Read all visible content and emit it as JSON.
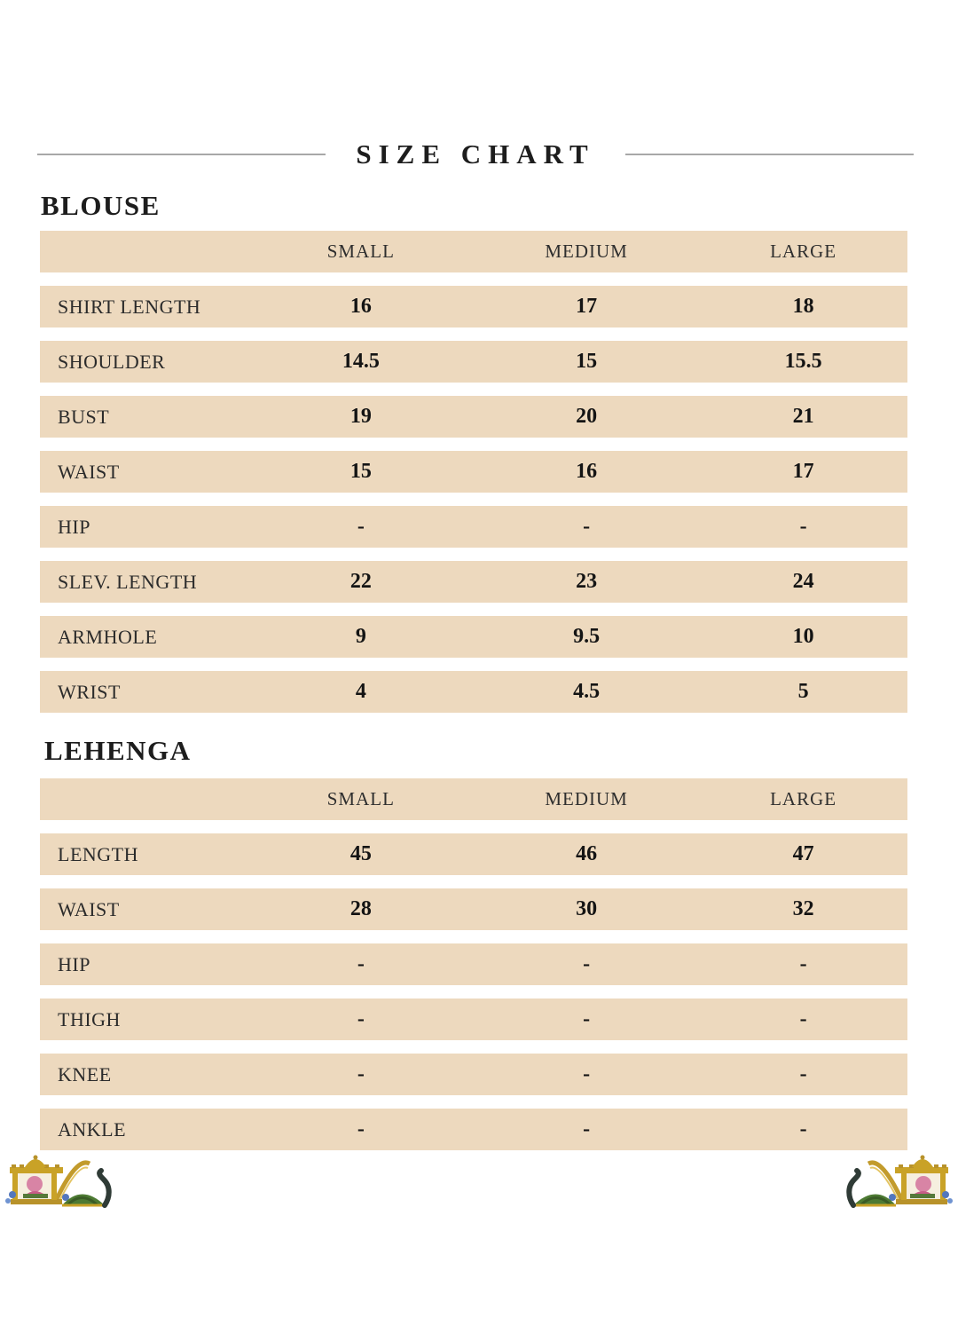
{
  "title": "SIZE CHART",
  "sections": [
    {
      "heading": "BLOUSE",
      "columns": [
        "SMALL",
        "MEDIUM",
        "LARGE"
      ],
      "rows": [
        {
          "label": "SHIRT LENGTH",
          "values": [
            "16",
            "17",
            "18"
          ]
        },
        {
          "label": "SHOULDER",
          "values": [
            "14.5",
            "15",
            "15.5"
          ]
        },
        {
          "label": "BUST",
          "values": [
            "19",
            "20",
            "21"
          ]
        },
        {
          "label": "WAIST",
          "values": [
            "15",
            "16",
            "17"
          ]
        },
        {
          "label": "HIP",
          "values": [
            "-",
            "-",
            "-"
          ]
        },
        {
          "label": "SLEV. LENGTH",
          "values": [
            "22",
            "23",
            "24"
          ]
        },
        {
          "label": "ARMHOLE",
          "values": [
            "9",
            "9.5",
            "10"
          ]
        },
        {
          "label": "WRIST",
          "values": [
            "4",
            "4.5",
            "5"
          ]
        }
      ]
    },
    {
      "heading": "LEHENGA",
      "columns": [
        "SMALL",
        "MEDIUM",
        "LARGE"
      ],
      "rows": [
        {
          "label": "LENGTH",
          "values": [
            "45",
            "46",
            "47"
          ]
        },
        {
          "label": "WAIST",
          "values": [
            "28",
            "30",
            "32"
          ]
        },
        {
          "label": "HIP",
          "values": [
            "-",
            "-",
            "-"
          ]
        },
        {
          "label": "THIGH",
          "values": [
            "-",
            "-",
            "-"
          ]
        },
        {
          "label": "KNEE",
          "values": [
            "-",
            "-",
            "-"
          ]
        },
        {
          "label": "ANKLE",
          "values": [
            "-",
            "-",
            "-"
          ]
        }
      ]
    }
  ],
  "decorations": {
    "left_icon": "elephant-howdah-motif",
    "right_icon": "elephant-howdah-motif-mirrored"
  },
  "colors": {
    "row_background": "#edd9be",
    "page_background": "#ffffff",
    "text": "#1d1d1d",
    "divider_line": "#a8a8a8"
  }
}
